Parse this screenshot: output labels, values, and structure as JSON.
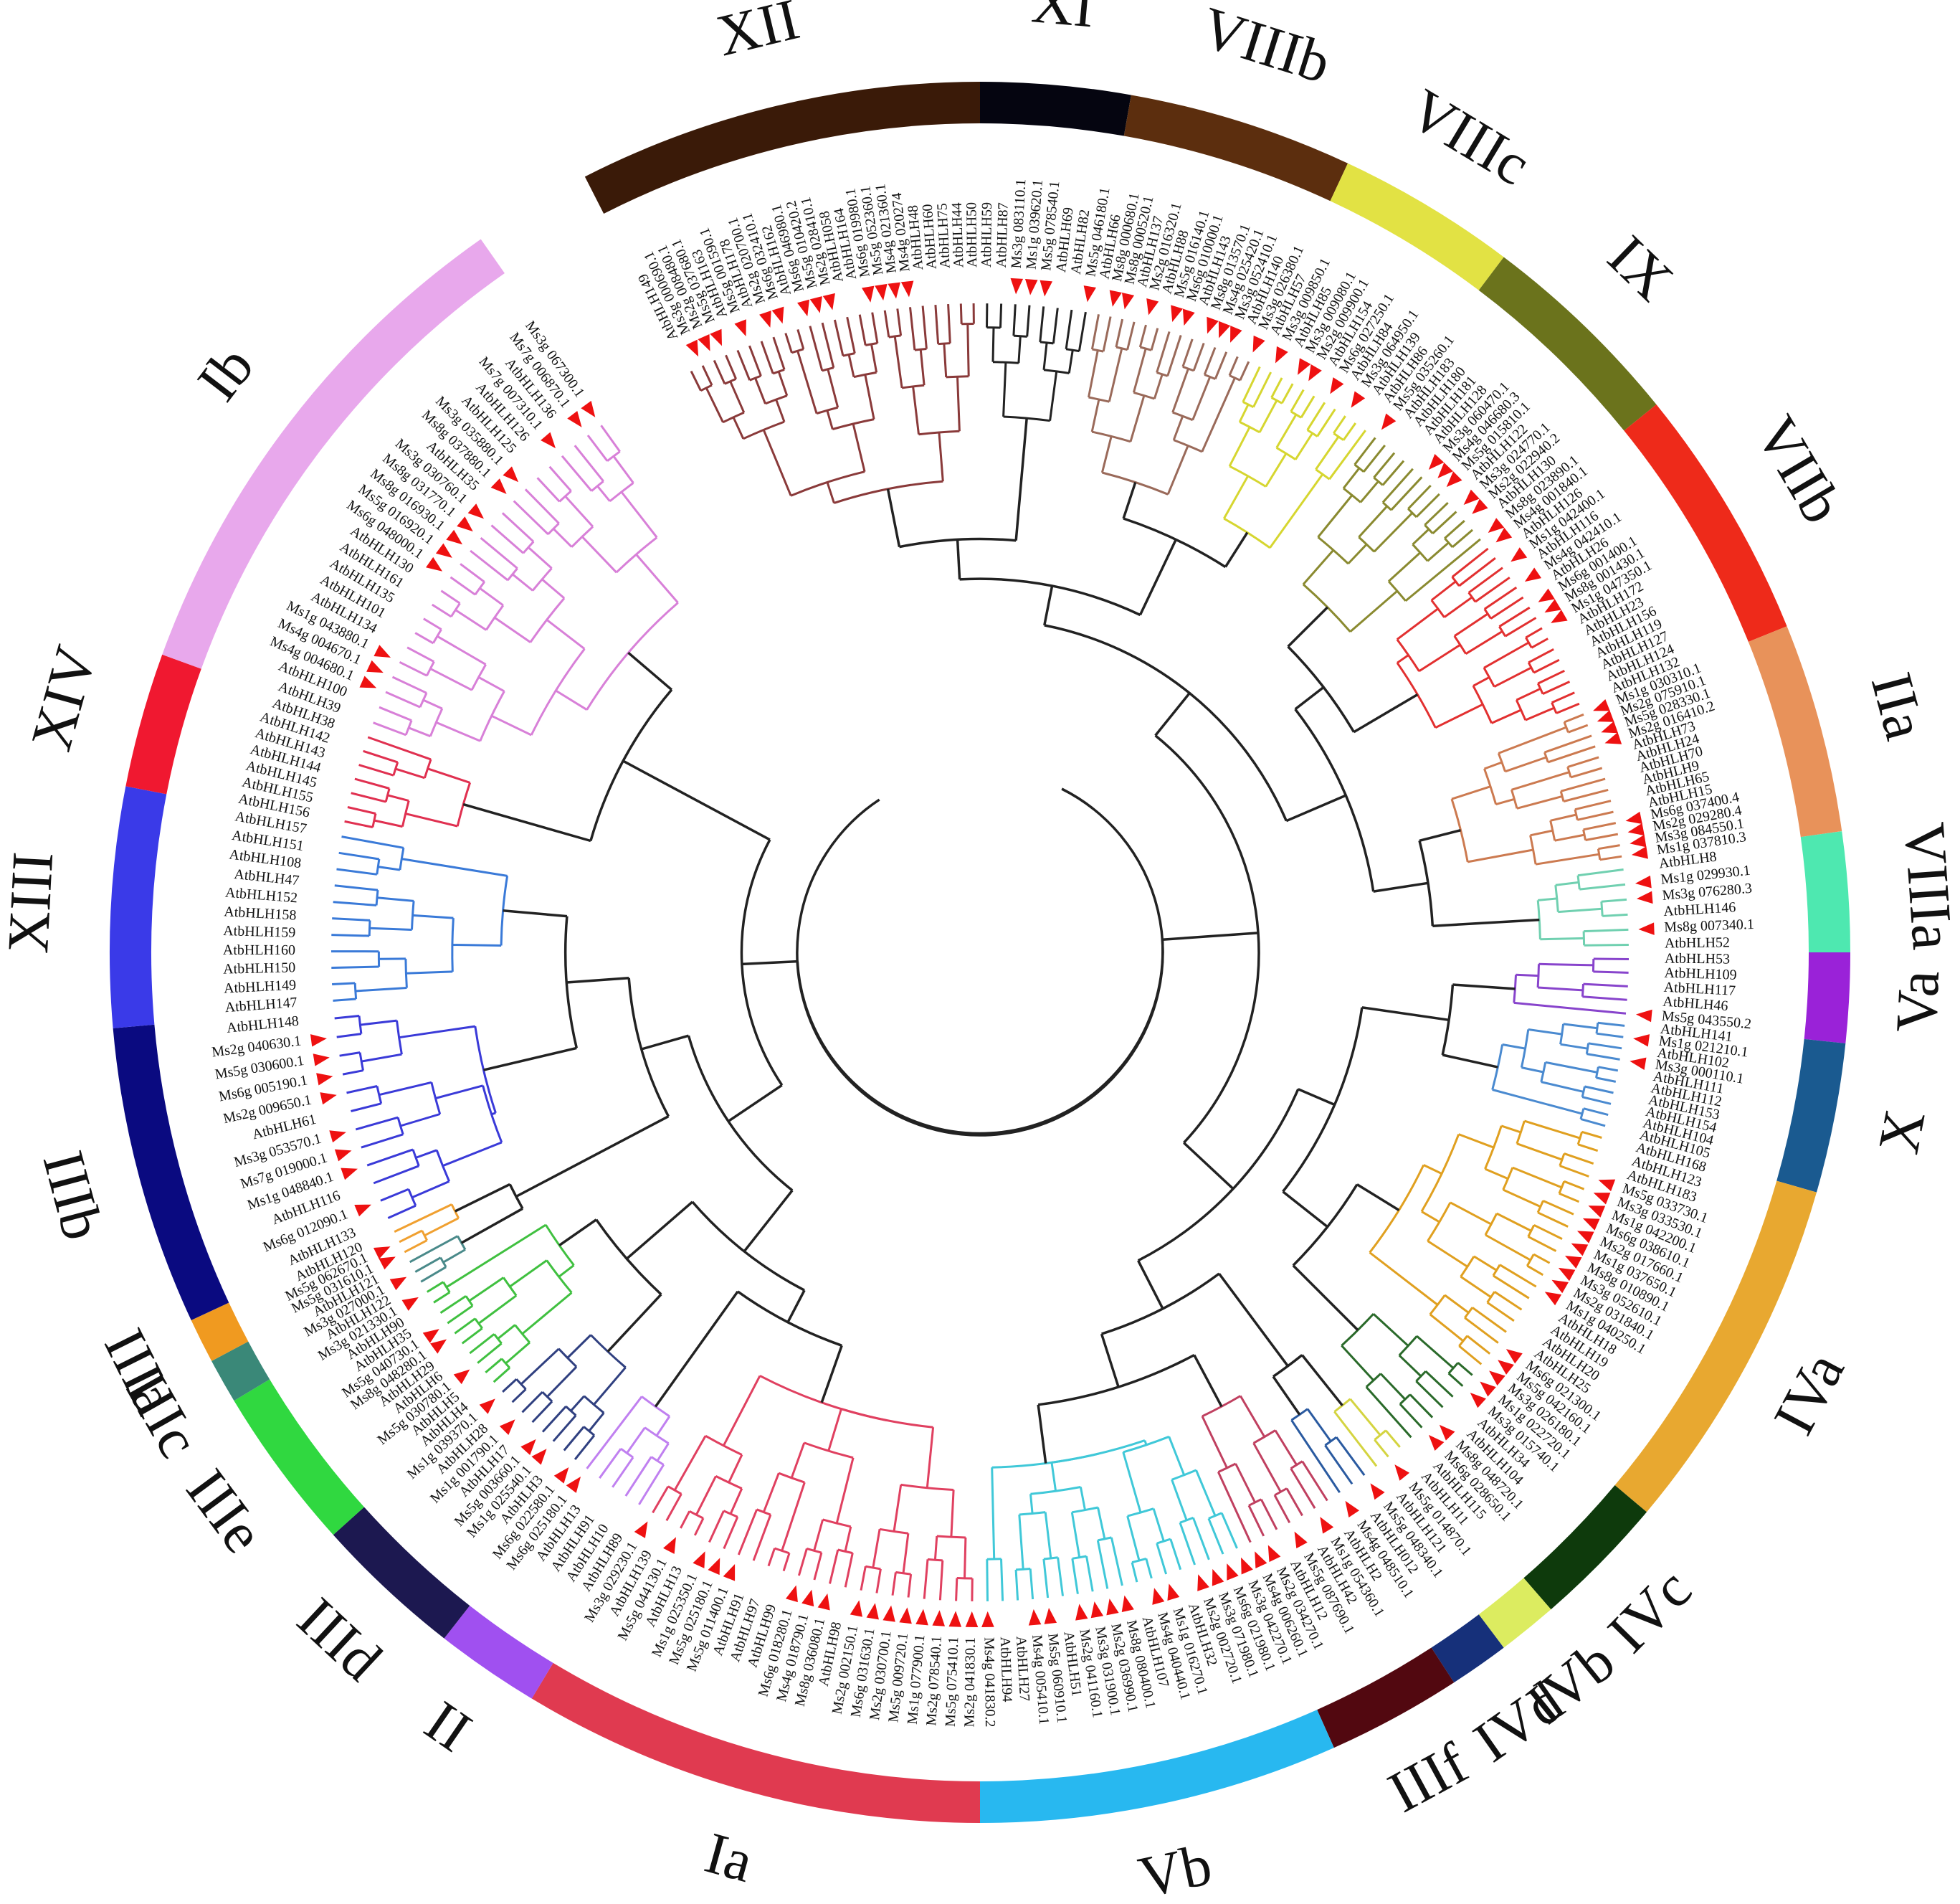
{
  "clades": [
    {
      "id": "XII",
      "label": "XII",
      "color": "#3a1a08",
      "branch_color": "#8a3a3a",
      "start": -27,
      "end": 0,
      "leaves": [
        "AtbHLH149",
        "Ms3g 000690.1",
        "Ms2g 008480.1",
        "Ms5g 037680.1",
        "AtbHLH163",
        "Ms5g 001590.1",
        "AtbHLH178",
        "Ms2g 020700.1",
        "Ms6g 032410.1",
        "AtbHLH162",
        "Ms6g 046980.1",
        "Ms5g 010420.2",
        "Ms2g 028410.1",
        "AtbHLH058",
        "AtbHLH164",
        "Ms6g 019980.1",
        "Ms5g 052360.1",
        "Ms4g 021360.1",
        "Ms4g 020274",
        "AtbHLH48",
        "AtbHLH60",
        "AtbHLH75",
        "AtbHLH44",
        "AtbHLH50"
      ]
    },
    {
      "id": "XI",
      "label": "XI",
      "color": "#050510",
      "branch_color": "#222222",
      "start": 0,
      "end": 10,
      "leaves": [
        "AtbHLH59",
        "AtbHLH87",
        "Ms3g 083110.1",
        "Ms1g 039620.1",
        "Ms5g 078540.1",
        "AtbHLH69",
        "AtbHLH82",
        "Ms5g 046180.1"
      ]
    },
    {
      "id": "VIIIb",
      "label": "VIIIb",
      "color": "#5c2e0e",
      "branch_color": "#9a6a5a",
      "start": 10,
      "end": 25,
      "leaves": [
        "AtbHLH66",
        "Ms8g 000680.1",
        "Ms8g 000520.1",
        "AtbHLH137",
        "Ms2g 016320.1",
        "AtbHLH88",
        "Ms5g 016140.1",
        "Ms6g 010000.1",
        "AtbHLH143",
        "Ms8g 013570.1",
        "Ms4g 025420.1",
        "Ms3g 052410.1",
        "AtbHLH140",
        "Ms3g 026380.1"
      ]
    },
    {
      "id": "VIIIc",
      "label": "VIIIc",
      "color": "#e2e244",
      "branch_color": "#d6d630",
      "start": 25,
      "end": 37,
      "leaves": [
        "AtbHLH57",
        "Ms3g 009850.1",
        "AtbHLH85",
        "Ms3g 009080.1",
        "Ms2g 009900.1",
        "AtbHLH154",
        "Ms6g 027250.1",
        "AtbHLH84",
        "Ms3g 064950.1",
        "AtbHLH139",
        "AtbHLH86"
      ]
    },
    {
      "id": "IX",
      "label": "IX",
      "color": "#6b731c",
      "branch_color": "#8a8a30",
      "start": 37,
      "end": 51,
      "leaves": [
        "Ms5g 035260.1",
        "AtbHLH183",
        "AtbHLH180",
        "AtbHLH181",
        "AtbHLH128",
        "Ms3g 060470.1",
        "Ms4g 046680.3",
        "Ms5g 015810.1",
        "AtbHLH122",
        "Ms3g 024770.1",
        "Ms2g 022940.2",
        "AtbHLH130",
        "Ms8g 023890.1"
      ]
    },
    {
      "id": "VIIb",
      "label": "VIIb",
      "color": "#ee2a1a",
      "branch_color": "#e23030",
      "start": 51,
      "end": 68,
      "leaves": [
        "Ms4g 001840.1",
        "AtbHLH126",
        "Ms1g 042400.1",
        "AtbHLH116",
        "Ms4g 042410.1",
        "AtbHLH26",
        "Ms6g 001400.1",
        "Ms8g 001430.1",
        "Ms1g 047350.1",
        "AtbHLH172",
        "AtbHLH23",
        "AtbHLH156",
        "AtbHLH119",
        "AtbHLH127",
        "AtbHLH124",
        "AtbHLH132"
      ]
    },
    {
      "id": "IIa",
      "label": "IIa",
      "color": "#e8925a",
      "branch_color": "#cc7a50",
      "start": 68,
      "end": 82,
      "leaves": [
        "Ms1g 030310.1",
        "Ms2g 075910.1",
        "Ms5g 028330.1",
        "Ms2g 016410.2",
        "AtbHLH73",
        "AtbHLH24",
        "AtbHLH70",
        "AtbHLH9",
        "AtbHLH65",
        "AtbHLH15",
        "Ms6g 037400.4",
        "Ms2g 029280.4",
        "Ms3g 084550.1",
        "Ms1g 037810.3"
      ]
    },
    {
      "id": "VIIIa",
      "label": "VIIIa",
      "color": "#4ee8b0",
      "branch_color": "#70d0b0",
      "start": 82,
      "end": 90,
      "leaves": [
        "AtbHLH8",
        "Ms1g 029930.1",
        "Ms3g 076280.3",
        "AtbHLH146",
        "Ms8g 007340.1",
        "AtbHLH52"
      ]
    },
    {
      "id": "Va",
      "label": "Va",
      "color": "#9a22d8",
      "branch_color": "#8844cc",
      "start": 90,
      "end": 96,
      "leaves": [
        "AtbHLH53",
        "AtbHLH109",
        "AtbHLH117",
        "AtbHLH46",
        "Ms5g 043550.2"
      ]
    },
    {
      "id": "X",
      "label": "X",
      "color": "#1a5a90",
      "branch_color": "#4a8ad0",
      "start": 96,
      "end": 106,
      "leaves": [
        "AtbHLH141",
        "Ms1g 021210.1",
        "AtbHLH102",
        "Ms3g 000110.1",
        "AtbHLH111",
        "AtbHLH112",
        "AtbHLH153",
        "AtbHLH154",
        "AtbHLH104",
        "AtbHLH105"
      ]
    },
    {
      "id": "IVa",
      "label": "IVa",
      "color": "#e8a830",
      "branch_color": "#e0a020",
      "start": 106,
      "end": 130,
      "leaves": [
        "AtbHLH168",
        "AtbHLH123",
        "AtbHLH183",
        "Ms5g 033730.1",
        "Ms3g 033530.1",
        "Ms1g 042200.1",
        "Ms6g 038610.1",
        "Ms2g 017660.1",
        "Ms1g 037650.1",
        "Ms8g 010890.1",
        "Ms3g 052610.1",
        "Ms2g 031840.1",
        "Ms1g 040250.1",
        "AtbHLH18",
        "AtbHLH19",
        "AtbHLH20",
        "AtbHLH25",
        "Ms6g 021300.1",
        "Ms5g 042160.1",
        "Ms3g 026180.1"
      ]
    },
    {
      "id": "IVc",
      "label": "IVc",
      "color": "#0e3a0c",
      "branch_color": "#2a6a2a",
      "start": 130,
      "end": 139,
      "leaves": [
        "Ms1g 022720.1",
        "Ms3g 015740.1",
        "AtbHLH34",
        "AtbHLH104",
        "Ms8g 048720.1",
        "Ms6g 028650.1",
        "AtbHLH115"
      ]
    },
    {
      "id": "IVb",
      "label": "IVb",
      "color": "#dcec60",
      "branch_color": "#d4d440",
      "start": 139,
      "end": 143,
      "leaves": [
        "AtbHLH11",
        "Ms5g 014870.1",
        "AtbHLH121"
      ]
    },
    {
      "id": "IVd",
      "label": "IVd",
      "color": "#16307a",
      "branch_color": "#2a5aa0",
      "start": 143,
      "end": 147,
      "leaves": [
        "Ms5g 048340.1",
        "AtbHLH012",
        "Ms4g 048510.1"
      ]
    },
    {
      "id": "IIIf",
      "label": "IIIf",
      "color": "#520810",
      "branch_color": "#c04060",
      "start": 147,
      "end": 156,
      "leaves": [
        "AtbHLH2",
        "Ms1g 054360.1",
        "AtbHLH42",
        "Ms5g 087690.1",
        "AtbHLH12",
        "Ms2g 034270.1",
        "Ms4g 006260.1"
      ]
    },
    {
      "id": "Vb",
      "label": "Vb",
      "color": "#28b8f0",
      "branch_color": "#40c8d8",
      "start": 156,
      "end": 180,
      "leaves": [
        "Ms3g 042270.1",
        "Ms6g 021980.1",
        "Ms3g 071980.1",
        "Ms2g 002720.1",
        "AtbHLH32",
        "Ms1g 016270.1",
        "Ms4g 040440.1",
        "AtbHLH107",
        "Ms8g 080400.1",
        "Ms2g 036990.1",
        "Ms3g 031900.1",
        "Ms2g 041160.1",
        "AtbHLH51",
        "Ms5g 060910.1",
        "Ms4g 005410.1",
        "AtbHLH27",
        "AtbHLH94",
        "Ms4g 041830.2"
      ]
    },
    {
      "id": "Ia",
      "label": "Ia",
      "color": "#e03a50",
      "branch_color": "#e04060",
      "start": 180,
      "end": 211,
      "leaves": [
        "Ms2g 041830.1",
        "Ms5g 075410.1",
        "Ms2g 078540.1",
        "Ms1g 077900.1",
        "Ms5g 009720.1",
        "Ms2g 030700.1",
        "Ms6g 031630.1",
        "Ms2g 002150.1",
        "AtbHLH98",
        "Ms8g 036080.1",
        "Ms4g 018790.1",
        "Ms6g 018280.1",
        "AtbHLH99",
        "AtbHLH97",
        "AtbHLH91",
        "Ms5g 011400.1",
        "Ms5g 025180.1",
        "Ms1g 025350.1",
        "AtbHLH13",
        "Ms5g 044130.1",
        "AtbHLH139",
        "Ms3g 029230.1"
      ]
    },
    {
      "id": "II",
      "label": "II",
      "color": "#a050f0",
      "branch_color": "#c080f0",
      "start": 211,
      "end": 218,
      "leaves": [
        "AtbHLH89",
        "AtbHLH10",
        "AtbHLH91",
        "AtbHLH13",
        "Ms6g 025180.1"
      ]
    },
    {
      "id": "IIId",
      "label": "IIId",
      "color": "#1c1850",
      "branch_color": "#304080",
      "start": 218,
      "end": 228,
      "leaves": [
        "Ms6g 022580.1",
        "AtbHLH3",
        "Ms1g 025540.1",
        "Ms5g 003660.1",
        "AtbHLH17",
        "Ms1g 001790.1",
        "AtbHLH28",
        "Ms1g 039370.1"
      ]
    },
    {
      "id": "IIIe",
      "label": "IIIe",
      "color": "#30d840",
      "branch_color": "#40c040",
      "start": 228,
      "end": 239,
      "leaves": [
        "AtbHLH4",
        "AtbHLH5",
        "Ms5g 030780.1",
        "AtbHLH6",
        "AtbHLH29",
        "Ms8g 048280.1",
        "Ms5g 040730.1",
        "AtbHLH35",
        "AtbHLH90",
        "Ms3g 021330.1"
      ]
    },
    {
      "id": "IIIc",
      "label": "IIIc",
      "color": "#3a8878",
      "branch_color": "#4a8a8a",
      "start": 239,
      "end": 242,
      "leaves": [
        "AtbHLH122",
        "Ms3g 027000.1",
        "AtbHLH121"
      ]
    },
    {
      "id": "IIIa",
      "label": "IIIa",
      "color": "#f09a20",
      "branch_color": "#f0a030",
      "start": 242,
      "end": 245,
      "leaves": [
        "Ms5g 031610.1",
        "Ms5g 062670.1",
        "AtbHLH120"
      ]
    },
    {
      "id": "IIIb",
      "label": "IIIb",
      "color": "#0a0a80",
      "branch_color": "#3a3ad8",
      "start": 245,
      "end": 265,
      "leaves": [
        "AtbHLH133",
        "Ms6g 012090.1",
        "AtbHLH116",
        "Ms1g 048840.1",
        "Ms7g 019000.1",
        "Ms3g 053570.1",
        "AtbHLH61",
        "Ms2g 009650.1",
        "Ms6g 005190.1",
        "Ms5g 030600.1",
        "Ms2g 040630.1",
        "AtbHLH148"
      ]
    },
    {
      "id": "XIII",
      "label": "XIII",
      "color": "#3a3ae8",
      "branch_color": "#3a7ad8",
      "start": 265,
      "end": 281,
      "leaves": [
        "AtbHLH147",
        "AtbHLH149",
        "AtbHLH150",
        "AtbHLH160",
        "AtbHLH159",
        "AtbHLH158",
        "AtbHLH152",
        "AtbHLH47",
        "AtbHLH108",
        "AtbHLH151",
        "AtbHLH157"
      ]
    },
    {
      "id": "XIV",
      "label": "XIV",
      "color": "#f01830",
      "branch_color": "#e03050",
      "start": 281,
      "end": 290,
      "leaves": [
        "AtbHLH156",
        "AtbHLH155",
        "AtbHLH145",
        "AtbHLH144",
        "AtbHLH143",
        "AtbHLH142",
        "AtbHLH38"
      ]
    },
    {
      "id": "Ib",
      "label": "Ib",
      "color": "#e8a8ec",
      "branch_color": "#d880d8",
      "start": 290,
      "end": 325,
      "leaves": [
        "AtbHLH39",
        "AtbHLH100",
        "Ms4g 004680.1",
        "Ms4g 004670.1",
        "Ms1g 043880.1",
        "AtbHLH134",
        "AtbHLH101",
        "AtbHLH135",
        "AtbHLH161",
        "AtbHLH130",
        "Ms6g 048000.1",
        "Ms5g 016920.1",
        "Ms8g 016930.1",
        "Ms8g 031770.1",
        "Ms3g 030760.1",
        "AtbHLH35",
        "Ms8g 037880.1",
        "Ms3g 035880.1",
        "AtbHLH125",
        "AtbHLH126",
        "Ms7g 007310.1",
        "AtbHLH136",
        "Ms7g 006870.1",
        "Ms3g 067300.1"
      ]
    }
  ],
  "markers": [
    "Ms",
    "Ms",
    "Ms"
  ]
}
